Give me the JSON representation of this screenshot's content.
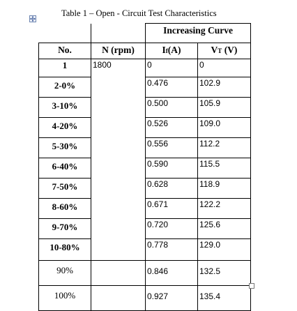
{
  "caption": "Table 1 – Open - Circuit Test Characteristics",
  "group_header": "Increasing Curve",
  "columns": {
    "no": "No.",
    "speed": "N (rpm)",
    "current_main": "I",
    "current_sub": "f",
    "current_unit": "(A)",
    "voltage_main": "V",
    "voltage_sub": "T",
    "voltage_unit": " (V)"
  },
  "speed_value": "1800",
  "rows": [
    {
      "no": "1",
      "i": "0",
      "v": "0"
    },
    {
      "no": "2-0%",
      "i": "0.476",
      "v": "102.9"
    },
    {
      "no": "3-10%",
      "i": "0.500",
      "v": "105.9"
    },
    {
      "no": "4-20%",
      "i": "0.526",
      "v": "109.0"
    },
    {
      "no": "5-30%",
      "i": "0.556",
      "v": "112.2"
    },
    {
      "no": "6-40%",
      "i": "0.590",
      "v": "115.5"
    },
    {
      "no": "7-50%",
      "i": "0.628",
      "v": "118.9"
    },
    {
      "no": "8-60%",
      "i": "0.671",
      "v": "122.2"
    },
    {
      "no": "9-70%",
      "i": "0.720",
      "v": "125.6"
    },
    {
      "no": "10-80%",
      "i": "0.778",
      "v": "129.0"
    },
    {
      "no": "90%",
      "i": "0.846",
      "v": "132.5"
    },
    {
      "no": "100%",
      "i": "0.927",
      "v": "135.4"
    }
  ]
}
